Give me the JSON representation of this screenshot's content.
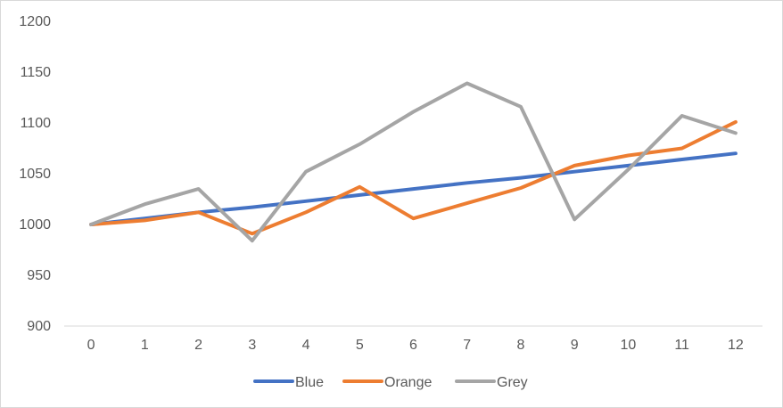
{
  "chart_data": {
    "type": "line",
    "title": "",
    "xlabel": "",
    "ylabel": "",
    "categories": [
      "0",
      "1",
      "2",
      "3",
      "4",
      "5",
      "6",
      "7",
      "8",
      "9",
      "10",
      "11",
      "12"
    ],
    "ylim": [
      900,
      1200
    ],
    "yticks": [
      "900",
      "950",
      "1000",
      "1050",
      "1100",
      "1150",
      "1200"
    ],
    "grid": false,
    "legend_position": "bottom",
    "series": [
      {
        "name": "Blue",
        "color": "#4472c4",
        "values": [
          1000,
          1006,
          1012,
          1017,
          1023,
          1029,
          1035,
          1041,
          1046,
          1052,
          1058,
          1064,
          1070
        ]
      },
      {
        "name": "Orange",
        "color": "#ed7d31",
        "values": [
          1000,
          1004,
          1012,
          991,
          1012,
          1037,
          1006,
          1021,
          1036,
          1058,
          1068,
          1075,
          1101
        ]
      },
      {
        "name": "Grey",
        "color": "#a5a5a5",
        "values": [
          1000,
          1020,
          1035,
          984,
          1052,
          1079,
          1111,
          1139,
          1116,
          1005,
          1054,
          1107,
          1090
        ]
      }
    ]
  }
}
